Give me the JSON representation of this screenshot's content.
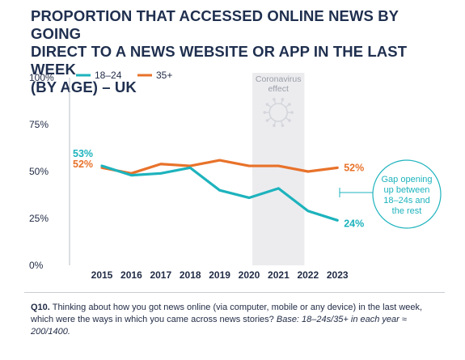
{
  "title_lines": [
    "PROPORTION THAT ACCESSED ONLINE NEWS BY GOING",
    "DIRECT TO A NEWS WEBSITE OR APP IN THE LAST WEEK",
    "(BY AGE) – UK"
  ],
  "footer": {
    "question_id": "Q10.",
    "question_text": "Thinking about how you got news online (via computer, mobile or any device) in the last week, which were the ways in which you came across news stories?",
    "base_text": "Base: 18–24s/35+ in each year ≈ 200/1400."
  },
  "colors": {
    "series_18_24": "#1db3bd",
    "series_35_plus": "#e8722a",
    "shade": "#ececef",
    "axis_text": "#1f2a44"
  },
  "chart_data": {
    "type": "line",
    "x": [
      "2015",
      "2016",
      "2017",
      "2018",
      "2019",
      "2020",
      "2021",
      "2022",
      "2023"
    ],
    "series": [
      {
        "name": "18–24",
        "color": "#1db3bd",
        "values": [
          53,
          48,
          49,
          52,
          40,
          36,
          41,
          29,
          24
        ]
      },
      {
        "name": "35+",
        "color": "#e8722a",
        "values": [
          52,
          49,
          54,
          53,
          56,
          53,
          53,
          50,
          52
        ]
      }
    ],
    "ylim": [
      0,
      100
    ],
    "yticks": [
      0,
      25,
      50,
      75,
      100
    ],
    "ytick_labels": [
      "0%",
      "25%",
      "50%",
      "75%",
      "100%"
    ],
    "legend_position": "top-left",
    "labels": {
      "start_18_24": "53%",
      "start_35_plus": "52%",
      "end_35_plus": "52%",
      "end_18_24": "24%"
    },
    "highlight": {
      "from": "2020",
      "to": "2021",
      "label_lines": [
        "Coronavirus",
        "effect"
      ],
      "icon": "virus-icon"
    },
    "annotation": {
      "lines": [
        "Gap opening",
        "up between",
        "18–24s and",
        "the rest"
      ]
    }
  }
}
